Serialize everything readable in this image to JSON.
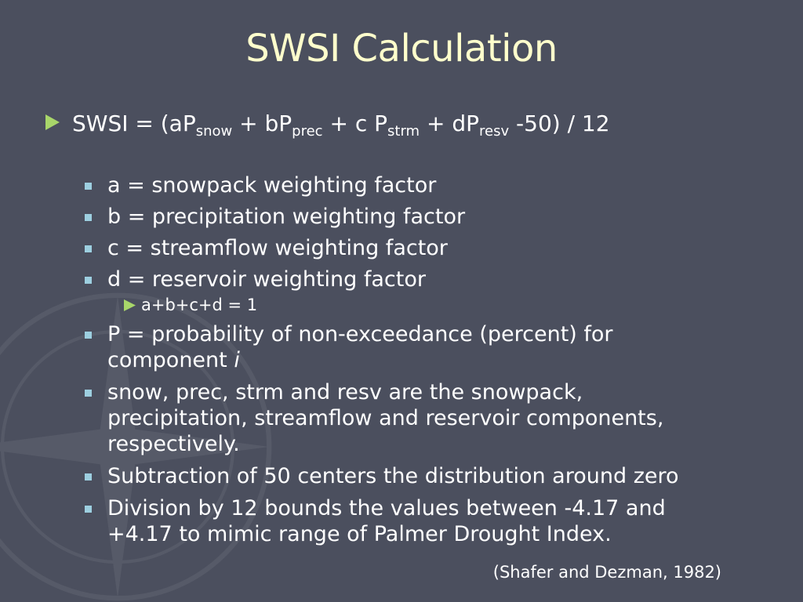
{
  "title": "SWSI Calculation",
  "formula": {
    "prefix": "SWSI = (aP",
    "snow": "snow",
    "part2": " + bP",
    "prec": "prec",
    "part3": " + c P",
    "strm": "strm",
    "part4": " + dP",
    "resv": "resv",
    "suffix": " -50) / 12"
  },
  "definitions": [
    "a = snowpack weighting factor",
    "b = precipitation weighting factor",
    "c = streamflow weighting factor",
    "d = reservoir weighting factor"
  ],
  "constraint": "a+b+c+d = 1",
  "p_definition": {
    "line1": "P = probability of non-exceedance (percent) for",
    "line2": "component ",
    "italic": "i"
  },
  "components": {
    "line1": "snow, prec, strm and resv are the snowpack,",
    "line2": "precipitation, streamflow and reservoir components,",
    "line3": "respectively."
  },
  "subtraction": "Subtraction of 50 centers the distribution around zero",
  "division": {
    "line1": "Division by 12 bounds the values between -4.17 and",
    "line2": "+4.17 to mimic range of Palmer Drought Index."
  },
  "citation": "(Shafer and Dezman, 1982)",
  "colors": {
    "background": "#4b4f5e",
    "title": "#ffffcc",
    "bullet_arrow": "#a8d66a",
    "bullet_square": "#9dcfe0",
    "text": "#ffffff"
  },
  "icons": {
    "main_bullet": "triangle-arrow-icon",
    "sub_bullet": "square-bullet-icon",
    "background": "compass-rose-icon"
  }
}
